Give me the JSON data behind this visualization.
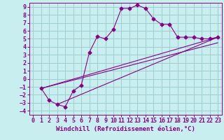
{
  "xlabel": "Windchill (Refroidissement éolien,°C)",
  "bg_color": "#c8eef0",
  "grid_color": "#9ecece",
  "line_color": "#880088",
  "xlim": [
    -0.5,
    23.5
  ],
  "ylim": [
    -4.5,
    9.5
  ],
  "xticks": [
    0,
    1,
    2,
    3,
    4,
    5,
    6,
    7,
    8,
    9,
    10,
    11,
    12,
    13,
    14,
    15,
    16,
    17,
    18,
    19,
    20,
    21,
    22,
    23
  ],
  "yticks": [
    -4,
    -3,
    -2,
    -1,
    0,
    1,
    2,
    3,
    4,
    5,
    6,
    7,
    8,
    9
  ],
  "curve1_x": [
    1,
    2,
    3,
    4,
    5,
    6,
    7,
    8,
    9,
    10,
    11,
    12,
    13,
    14,
    15,
    16,
    17,
    18,
    19,
    20,
    21,
    22,
    23
  ],
  "curve1_y": [
    -1.2,
    -2.7,
    -3.2,
    -3.5,
    -1.5,
    -0.8,
    3.3,
    5.3,
    5.0,
    6.2,
    8.8,
    8.8,
    9.2,
    8.8,
    7.5,
    6.8,
    6.8,
    5.2,
    5.2,
    5.2,
    5.0,
    5.0,
    5.2
  ],
  "line1_x": [
    1,
    23
  ],
  "line1_y": [
    -1.2,
    5.2
  ],
  "line2_x": [
    1,
    23
  ],
  "line2_y": [
    -1.2,
    4.5
  ],
  "line3_x": [
    3,
    23
  ],
  "line3_y": [
    -3.2,
    5.2
  ],
  "xlabel_fontsize": 6.5,
  "tick_fontsize": 6,
  "marker": "D",
  "marker_size": 2.5
}
